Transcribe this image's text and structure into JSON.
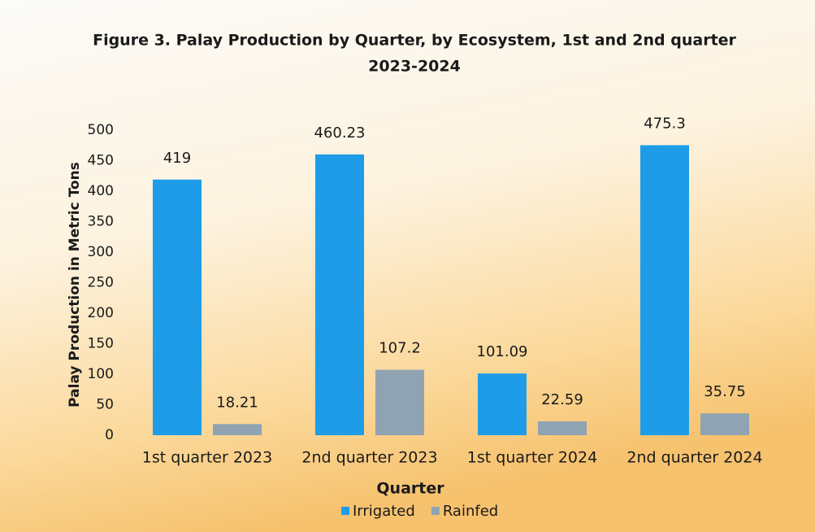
{
  "chart_data": {
    "type": "bar",
    "title": [
      "Figure 3. Palay Production by Quarter, by Ecosystem, 1st and 2nd quarter",
      "2023-2024"
    ],
    "x_label": "Quarter",
    "y_label": "Palay Production in Metric Tons",
    "categories": [
      "1st quarter 2023",
      "2nd quarter 2023",
      "1st quarter 2024",
      "2nd quarter 2024"
    ],
    "series": [
      {
        "name": "Irrigated",
        "color": "#1e9ce8",
        "values": [
          419,
          460.23,
          101.09,
          475.3
        ]
      },
      {
        "name": "Rainfed",
        "color": "#8fa3b3",
        "values": [
          18.21,
          107.2,
          22.59,
          35.75
        ]
      }
    ],
    "ylim": [
      0,
      500
    ],
    "yticks": [
      0,
      50,
      100,
      150,
      200,
      250,
      300,
      350,
      400,
      450,
      500
    ],
    "grid": false,
    "legend": "bottom"
  }
}
